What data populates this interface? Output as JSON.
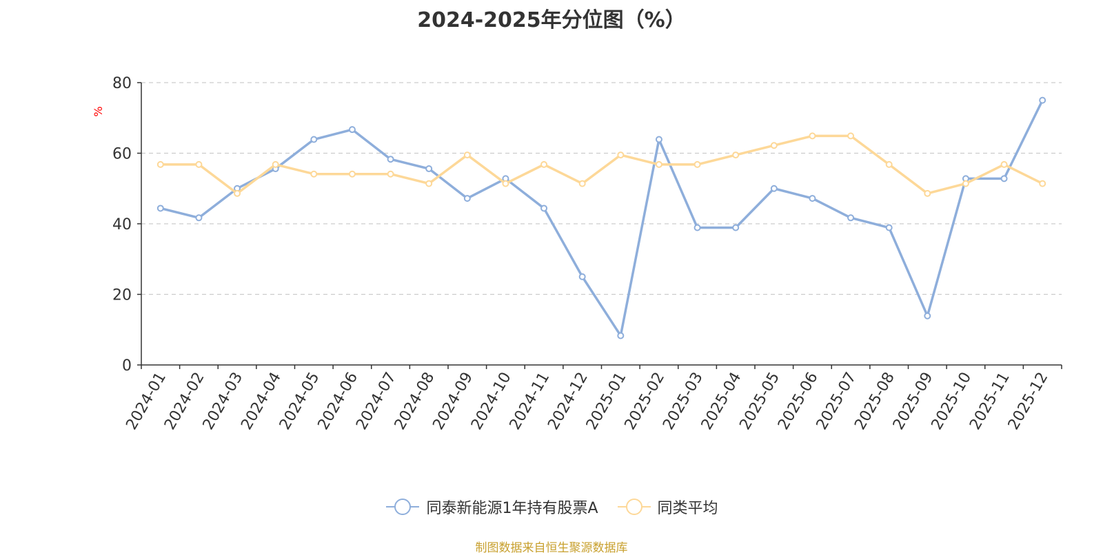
{
  "chart_data": {
    "type": "line",
    "title": "2024-2025年分位图（%）",
    "ylabel": "%",
    "ylim": [
      0,
      80
    ],
    "yticks": [
      0,
      20,
      40,
      60,
      80
    ],
    "grid": true,
    "legend_position": "bottom",
    "categories": [
      "2024-01",
      "2024-02",
      "2024-03",
      "2024-04",
      "2024-05",
      "2024-06",
      "2024-07",
      "2024-08",
      "2024-09",
      "2024-10",
      "2024-11",
      "2024-12",
      "2025-01",
      "2025-02",
      "2025-03",
      "2025-04",
      "2025-05",
      "2025-06",
      "2025-07",
      "2025-08",
      "2025-09",
      "2025-10",
      "2025-11",
      "2025-12"
    ],
    "series": [
      {
        "name": "同泰新能源1年持有股票A",
        "color": "#8eaedb",
        "values": [
          44.4,
          41.7,
          50.0,
          55.6,
          63.9,
          66.7,
          58.3,
          55.6,
          47.2,
          52.8,
          44.4,
          25.0,
          8.3,
          63.9,
          38.9,
          38.9,
          50.0,
          47.2,
          41.7,
          38.9,
          13.9,
          52.8,
          52.8,
          75.0
        ]
      },
      {
        "name": "同类平均",
        "color": "#fdd898",
        "values": [
          56.8,
          56.8,
          48.6,
          56.8,
          54.1,
          54.1,
          54.1,
          51.4,
          59.5,
          51.4,
          56.8,
          51.4,
          59.5,
          56.8,
          56.8,
          59.5,
          62.2,
          64.9,
          64.9,
          56.8,
          48.6,
          51.4,
          56.8,
          51.4
        ]
      }
    ]
  },
  "footer": {
    "source": "制图数据来自恒生聚源数据库"
  },
  "colors": {
    "axis_label": "#333333",
    "grid": "#cccccc",
    "ylabel": "#ff0000",
    "source": "#c8a02e"
  }
}
